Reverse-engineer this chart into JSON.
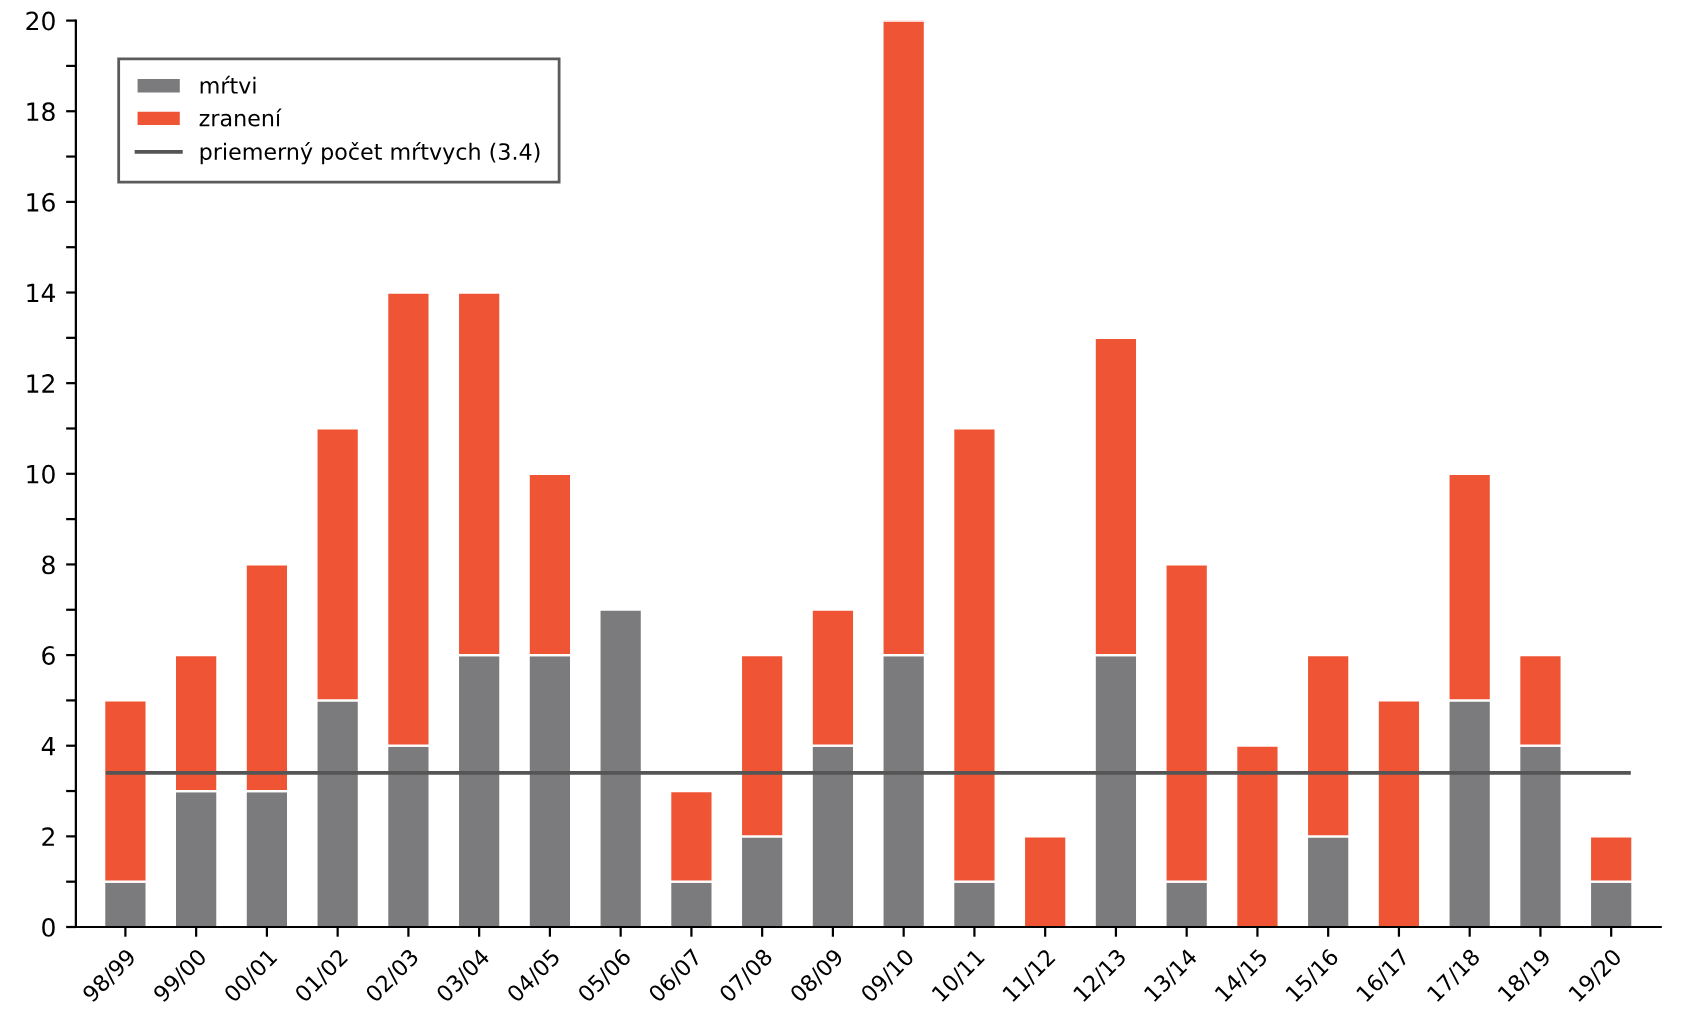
{
  "chart_data": {
    "type": "bar",
    "stacked": true,
    "categories": [
      "98/99",
      "99/00",
      "00/01",
      "01/02",
      "02/03",
      "03/04",
      "04/05",
      "05/06",
      "06/07",
      "07/08",
      "08/09",
      "09/10",
      "10/11",
      "11/12",
      "12/13",
      "13/14",
      "14/15",
      "15/16",
      "16/17",
      "17/18",
      "18/19",
      "19/20"
    ],
    "series": [
      {
        "name": "mŕtvi",
        "color": "#7b7b7d",
        "values": [
          1,
          3,
          3,
          5,
          4,
          6,
          6,
          7,
          1,
          2,
          4,
          6,
          1,
          0,
          6,
          1,
          0,
          2,
          0,
          5,
          4,
          1
        ]
      },
      {
        "name": "zranení",
        "color": "#ef5434",
        "values": [
          4,
          3,
          5,
          6,
          10,
          8,
          4,
          0,
          2,
          4,
          3,
          14,
          10,
          2,
          7,
          7,
          4,
          4,
          5,
          5,
          2,
          1
        ]
      }
    ],
    "ref_lines": [
      {
        "axis": "y",
        "value": 3.4,
        "label": "priemerný počet mŕtvych (3.4)",
        "color": "#555555",
        "line_style": "solid"
      }
    ],
    "ylim": [
      0,
      20
    ],
    "yticks": [
      0,
      {
        "value": 1,
        "label": null
      },
      2,
      {
        "value": 3,
        "label": null
      },
      4,
      {
        "value": 5,
        "label": null
      },
      6,
      {
        "value": 7,
        "label": null
      },
      8,
      {
        "value": 9,
        "label": null
      },
      10,
      {
        "value": 11,
        "label": null
      },
      12,
      {
        "value": 13,
        "label": null
      },
      14,
      {
        "value": 15,
        "label": null
      },
      16,
      {
        "value": 17,
        "label": null
      },
      18,
      {
        "value": 19,
        "label": null
      },
      20
    ],
    "grid": false,
    "legend": "top left"
  }
}
